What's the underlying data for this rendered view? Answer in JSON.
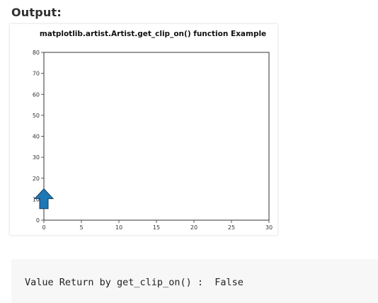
{
  "header": {
    "output_label": "Output:"
  },
  "chart_data": {
    "type": "line",
    "title": "matplotlib.artist.Artist.get_clip_on() function Example",
    "xlabel": "",
    "ylabel": "",
    "xlim": [
      0,
      30
    ],
    "ylim": [
      0,
      80
    ],
    "x_ticks": [
      0,
      5,
      10,
      15,
      20,
      25,
      30
    ],
    "y_ticks": [
      0,
      10,
      20,
      30,
      40,
      50,
      60,
      70,
      80
    ],
    "grid": false,
    "legend": "none",
    "series": [],
    "annotations": [
      {
        "kind": "arrow",
        "direction": "up",
        "x": 0,
        "y_start": 5.5,
        "y_end": 15,
        "face_color": "#1f77b4",
        "edge_color": "#123f63",
        "clipped": false
      }
    ],
    "axis_color": "#333333"
  },
  "console": {
    "output_text": "Value Return by get_clip_on() :  False"
  }
}
